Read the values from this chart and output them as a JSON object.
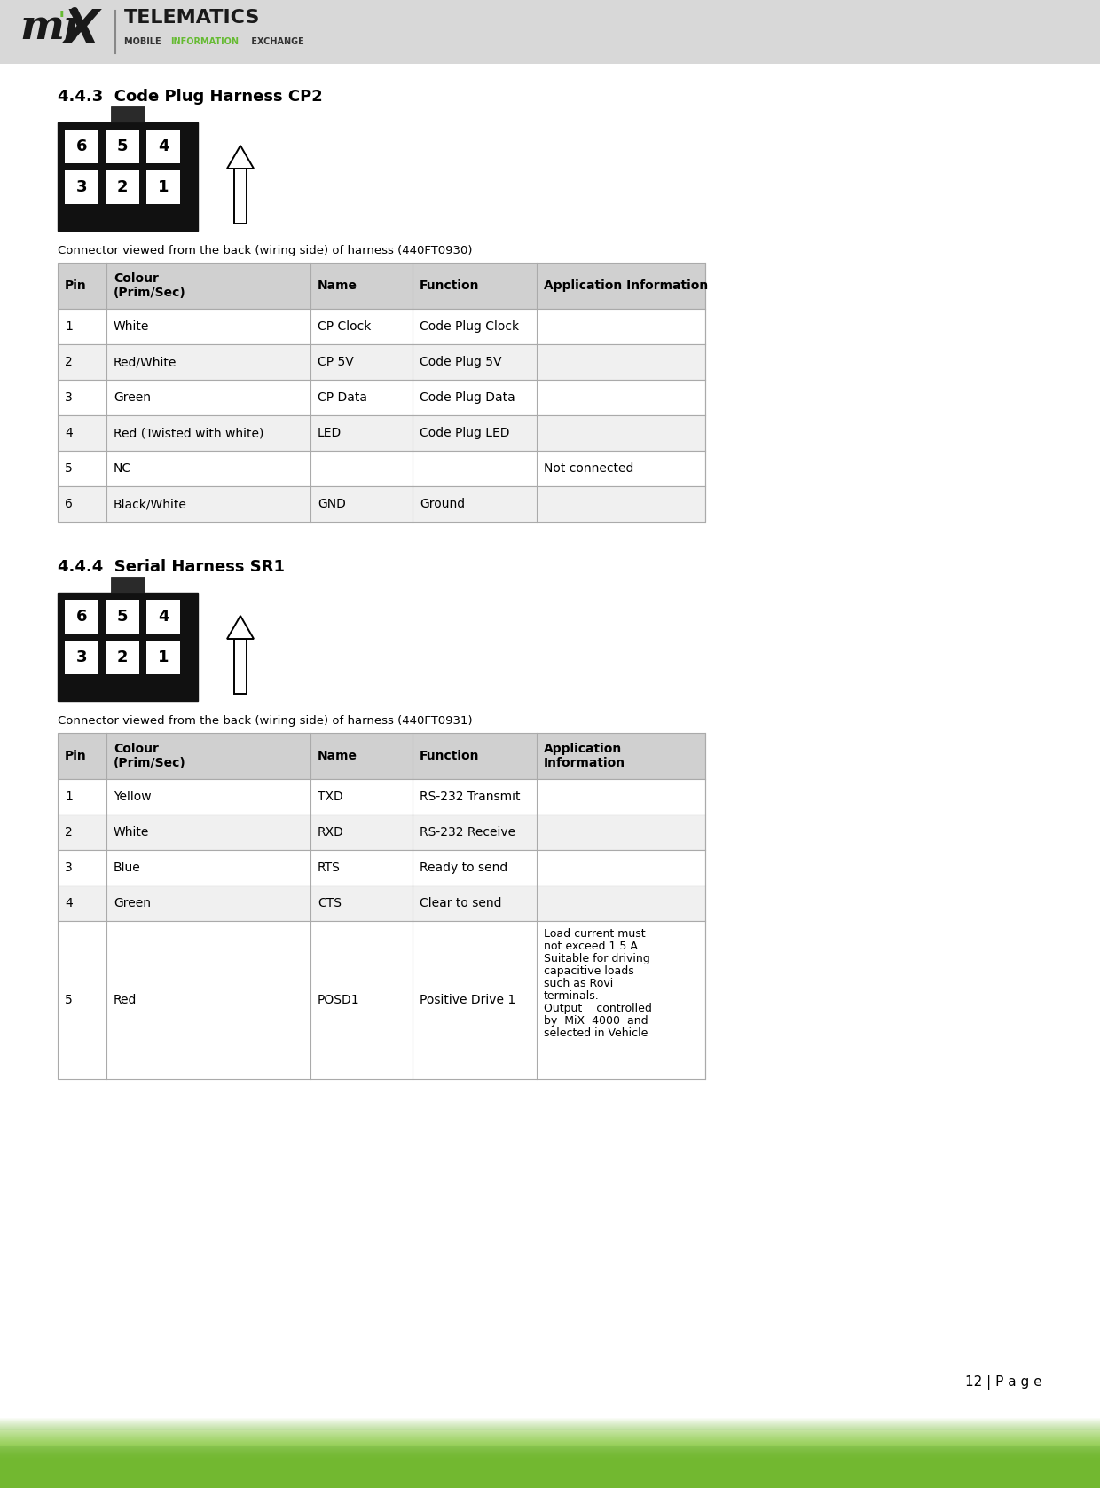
{
  "page_bg": "#ffffff",
  "header_bg": "#d8d8d8",
  "page_number_text": "12 | P a g e",
  "section1_title": "4.4.3  Code Plug Harness CP2",
  "section1_connector_note": "Connector viewed from the back (wiring side) of harness (440FT0930)",
  "section1_pins": [
    {
      "pin": "1",
      "colour": "White",
      "name": "CP Clock",
      "function": "Code Plug Clock",
      "app_info": ""
    },
    {
      "pin": "2",
      "colour": "Red/White",
      "name": "CP 5V",
      "function": "Code Plug 5V",
      "app_info": ""
    },
    {
      "pin": "3",
      "colour": "Green",
      "name": "CP Data",
      "function": "Code Plug Data",
      "app_info": ""
    },
    {
      "pin": "4",
      "colour": "Red (Twisted with white)",
      "name": "LED",
      "function": "Code Plug LED",
      "app_info": ""
    },
    {
      "pin": "5",
      "colour": "NC",
      "name": "",
      "function": "",
      "app_info": "Not connected"
    },
    {
      "pin": "6",
      "colour": "Black/White",
      "name": "GND",
      "function": "Ground",
      "app_info": ""
    }
  ],
  "section1_col_headers": [
    "Pin",
    "Colour\n(Prim/Sec)",
    "Name",
    "Function",
    "Application Information"
  ],
  "section2_title": "4.4.4  Serial Harness SR1",
  "section2_connector_note": "Connector viewed from the back (wiring side) of harness (440FT0931)",
  "section2_pins": [
    {
      "pin": "1",
      "colour": "Yellow",
      "name": "TXD",
      "function": "RS-232 Transmit",
      "app_info": ""
    },
    {
      "pin": "2",
      "colour": "White",
      "name": "RXD",
      "function": "RS-232 Receive",
      "app_info": ""
    },
    {
      "pin": "3",
      "colour": "Blue",
      "name": "RTS",
      "function": "Ready to send",
      "app_info": ""
    },
    {
      "pin": "4",
      "colour": "Green",
      "name": "CTS",
      "function": "Clear to send",
      "app_info": ""
    },
    {
      "pin": "5",
      "colour": "Red",
      "name": "POSD1",
      "function": "Positive Drive 1",
      "app_info": "Load current must\nnot exceed 1.5 A.\nSuitable for driving\ncapacitive loads\nsuch as Rovi\nterminals.\nOutput    controlled\nby  MiX  4000  and\nselected in Vehicle"
    }
  ],
  "section2_col_headers": [
    "Pin",
    "Colour\n(Prim/Sec)",
    "Name",
    "Function",
    "Application\nInformation"
  ],
  "table_header_bg": "#d0d0d0",
  "connector_bg": "#111111",
  "connector_pin_bg": "#ffffff",
  "grid_color": "#aaaaaa",
  "text_color": "#000000"
}
